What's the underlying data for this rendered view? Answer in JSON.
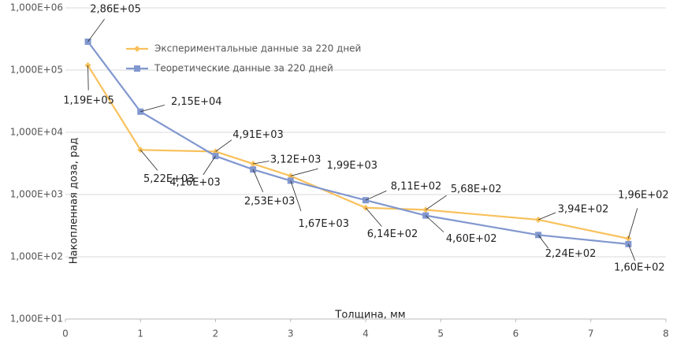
{
  "chart_data": {
    "type": "line",
    "x_label": "Толщина, мм",
    "y_label": "Накопленная доза, рад",
    "x": [
      0.3,
      1,
      2,
      2.5,
      3,
      4,
      4.8,
      6.3,
      7.5
    ],
    "series": [
      {
        "name": "Экспериментальные данные за 220 дней",
        "color": "#f8c15c",
        "marker": "diamond",
        "values": [
          119000,
          5220,
          4910,
          3120,
          1990,
          614,
          568,
          394,
          196
        ],
        "value_labels": [
          "1,19E+05",
          "5,22E+03",
          "4,91E+03",
          "3,12E+03",
          "1,99E+03",
          "6,14E+02",
          "5,68E+02",
          "3,94E+02",
          "1,96E+02"
        ]
      },
      {
        "name": "Теоретические данные за 220 дней",
        "color": "#8197cf",
        "marker": "square",
        "values": [
          286000,
          21500,
          4160,
          2530,
          1670,
          811,
          460,
          224,
          160
        ],
        "value_labels": [
          "2,86E+05",
          "2,15E+04",
          "4,16E+03",
          "2,53E+03",
          "1,67E+03",
          "8,11E+02",
          "4,60E+02",
          "2,24E+02",
          "1,60E+02"
        ]
      }
    ],
    "xlim": [
      0,
      8
    ],
    "xticks": [
      0,
      1,
      2,
      3,
      4,
      5,
      6,
      7,
      8
    ],
    "ylim": [
      10,
      1000000
    ],
    "log_y": true,
    "yticks": [
      {
        "value": 10,
        "label": "1,000E+01"
      },
      {
        "value": 100,
        "label": "1,000E+02"
      },
      {
        "value": 1000,
        "label": "1,000E+03"
      },
      {
        "value": 10000,
        "label": "1,000E+04"
      },
      {
        "value": 100000,
        "label": "1,000E+05"
      },
      {
        "value": 1000000,
        "label": "1,000E+06"
      }
    ],
    "grid": true,
    "legend": "top-left"
  }
}
